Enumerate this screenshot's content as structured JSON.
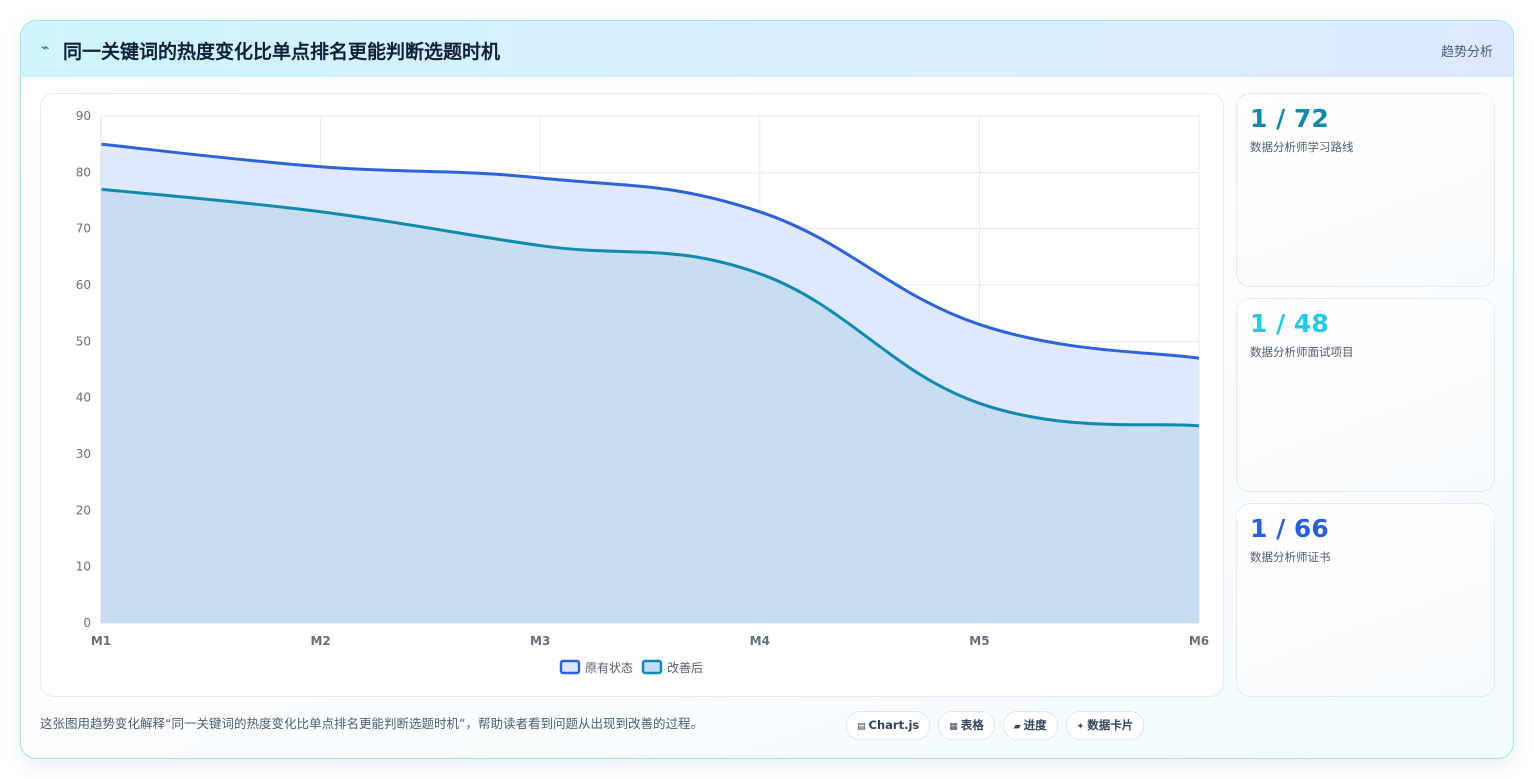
{
  "header": {
    "icon": "chart-line-icon",
    "icon_glyph": "⌁",
    "title": "同一关键词的热度变化比单点排名更能判断选题时机",
    "tag": "趋势分析"
  },
  "colors": {
    "series1_line": "#2d63d6",
    "series1_fill": "#e0e9fb",
    "series2_line": "#118aae",
    "series2_fill": "#c4dcf1",
    "stat1": "#138aab",
    "stat2": "#27c8e2",
    "stat3": "#2a5fd6"
  },
  "chart_data": {
    "type": "area",
    "categories": [
      "M1",
      "M2",
      "M3",
      "M4",
      "M5",
      "M6"
    ],
    "series": [
      {
        "name": "原有状态",
        "values": [
          85,
          81,
          79,
          73,
          53,
          47
        ]
      },
      {
        "name": "改善后",
        "values": [
          77,
          73,
          67,
          62,
          39,
          35
        ]
      }
    ],
    "ylim": [
      0,
      90
    ],
    "yticks": [
      0,
      10,
      20,
      30,
      40,
      50,
      60,
      70,
      80,
      90
    ],
    "grid": true,
    "legend": "bottom"
  },
  "stats": [
    {
      "value": "1 / 72",
      "label": "数据分析师学习路线"
    },
    {
      "value": "1 / 48",
      "label": "数据分析师面试项目"
    },
    {
      "value": "1 / 66",
      "label": "数据分析师证书"
    }
  ],
  "caption": "这张图用趋势变化解释“同一关键词的热度变化比单点排名更能判断选题时机”，帮助读者看到问题从出现到改善的过程。",
  "pills": [
    {
      "icon": "chart-icon",
      "glyph": "▤",
      "label": "Chart.js"
    },
    {
      "icon": "table-icon",
      "glyph": "▦",
      "label": "表格"
    },
    {
      "icon": "progress-icon",
      "glyph": "▰",
      "label": "进度"
    },
    {
      "icon": "sparkle-icon",
      "glyph": "✦",
      "label": "数据卡片"
    }
  ]
}
